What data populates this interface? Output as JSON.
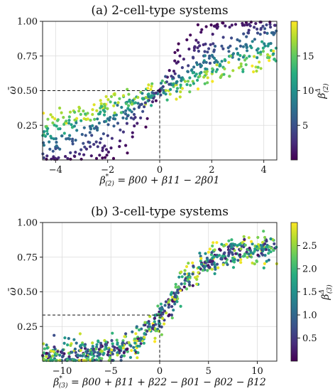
{
  "chart_data": [
    {
      "type": "scatter",
      "title": "(a) 2-cell-type systems",
      "xlabel": "β*(2) = β00 + β11 − 2β01",
      "xlabel_main": "β",
      "xlabel_sub": "(2)",
      "xlabel_sup": "*",
      "xlabel_rest": " = β00 + β11 − 2β01",
      "ylabel": "ω̄",
      "xlim": [
        -4.5,
        4.5
      ],
      "ylim": [
        0.0,
        1.0
      ],
      "xticks": [
        -4,
        -2,
        0,
        2,
        4
      ],
      "xtick_labels": [
        "−4",
        "−2",
        "0",
        "2",
        "4"
      ],
      "yticks": [
        0.25,
        0.5,
        0.75,
        1.0
      ],
      "ytick_labels": [
        "0.25",
        "0.50",
        "0.75",
        "1.00"
      ],
      "grid": true,
      "reference_point": [
        0,
        0.5
      ],
      "colorbar": {
        "label_main": "β",
        "label_sub": "(2)",
        "label_sup": "Δ",
        "cmap": "viridis",
        "range": [
          0,
          20
        ],
        "ticks": [
          5,
          10,
          15
        ],
        "tick_labels": [
          "5",
          "10",
          "15"
        ]
      },
      "n_points": 600
    },
    {
      "type": "scatter",
      "title": "(b) 3-cell-type systems",
      "xlabel": "β*(3) = β00 + β11 + β22 − β01 − β02 − β12",
      "xlabel_main": "β",
      "xlabel_sub": "(3)",
      "xlabel_sup": "*",
      "xlabel_rest": " = β00 + β11 + β22 − β01 − β02 − β12",
      "ylabel": "ω̄",
      "xlim": [
        -12,
        12
      ],
      "ylim": [
        0.0,
        1.0
      ],
      "xticks": [
        -10,
        -5,
        0,
        5,
        10
      ],
      "xtick_labels": [
        "−10",
        "−5",
        "0",
        "5",
        "10"
      ],
      "yticks": [
        0.25,
        0.5,
        0.75,
        1.0
      ],
      "ytick_labels": [
        "0.25",
        "0.50",
        "0.75",
        "1.00"
      ],
      "grid": true,
      "reference_point": [
        0,
        0.333
      ],
      "colorbar": {
        "label_main": "β",
        "label_sub": "(3)",
        "label_sup": "Δ",
        "cmap": "viridis",
        "range": [
          0,
          3
        ],
        "ticks": [
          0.5,
          1.0,
          1.5,
          2.0,
          2.5
        ],
        "tick_labels": [
          "0.5",
          "1.0",
          "1.5",
          "2.0",
          "2.5"
        ]
      },
      "n_points": 700
    }
  ]
}
